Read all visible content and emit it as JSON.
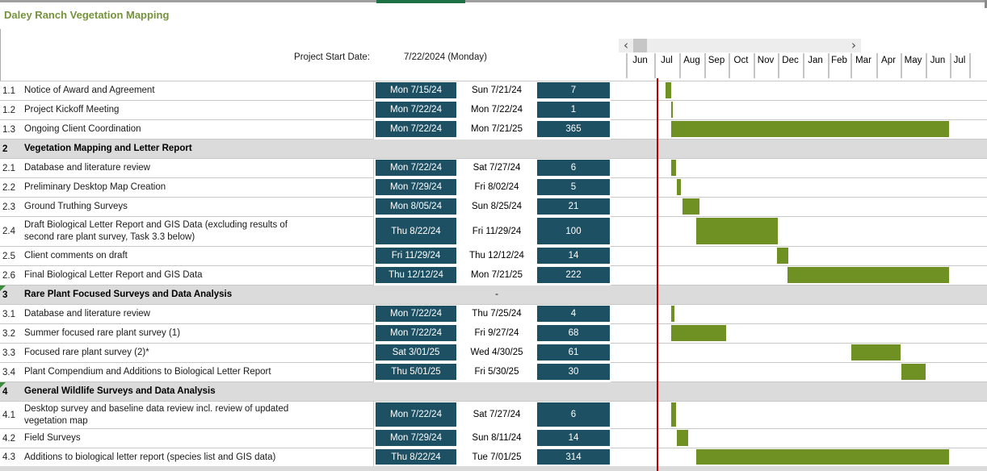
{
  "title": "Daley Ranch Vegetation Mapping",
  "project_start": {
    "label": "Project Start Date:",
    "value": "7/22/2024 (Monday)"
  },
  "scrollbar": {
    "left_glyph": "‹",
    "right_glyph": "›"
  },
  "timeline": {
    "months": [
      "Jun",
      "Jul",
      "Aug",
      "Sep",
      "Oct",
      "Nov",
      "Dec",
      "Jan",
      "Feb",
      "Mar",
      "Apr",
      "May",
      "Jun",
      "Jul"
    ]
  },
  "colors": {
    "accent_teal": "#1E5064",
    "bar_green": "#6F9124",
    "today_red": "#BE0000",
    "section_gray": "#DBDBDB",
    "title_olive": "#76933C",
    "flag_green": "#3C8A3C",
    "sheet_tab_green": "#1E7145"
  },
  "tasks": [
    {
      "type": "task",
      "id": "1.1",
      "name": "Notice of Award and Agreement",
      "start_label": "Mon 7/15/24",
      "end_label": "Sun 7/21/24",
      "days": "7",
      "start": "2024-07-15",
      "end": "2024-07-21"
    },
    {
      "type": "task",
      "id": "1.2",
      "name": "Project Kickoff Meeting",
      "start_label": "Mon 7/22/24",
      "end_label": "Mon 7/22/24",
      "days": "1",
      "start": "2024-07-22",
      "end": "2024-07-22"
    },
    {
      "type": "task",
      "id": "1.3",
      "name": "Ongoing Client Coordination",
      "start_label": "Mon 7/22/24",
      "end_label": "Mon 7/21/25",
      "days": "365",
      "start": "2024-07-22",
      "end": "2025-07-21"
    },
    {
      "type": "section",
      "id": "2",
      "name": "Vegetation Mapping and Letter Report"
    },
    {
      "type": "task",
      "id": "2.1",
      "name": "Database and literature review",
      "start_label": "Mon 7/22/24",
      "end_label": "Sat 7/27/24",
      "days": "6",
      "start": "2024-07-22",
      "end": "2024-07-27"
    },
    {
      "type": "task",
      "id": "2.2",
      "name": "Preliminary Desktop Map Creation",
      "start_label": "Mon 7/29/24",
      "end_label": "Fri 8/02/24",
      "days": "5",
      "start": "2024-07-29",
      "end": "2024-08-02"
    },
    {
      "type": "task",
      "id": "2.3",
      "name": "Ground Truthing Surveys",
      "start_label": "Mon 8/05/24",
      "end_label": "Sun 8/25/24",
      "days": "21",
      "start": "2024-08-05",
      "end": "2024-08-25"
    },
    {
      "type": "task",
      "id": "2.4",
      "name": "Draft Biological Letter Report and GIS Data (excluding results of\nsecond rare plant survey, Task 3.3 below)",
      "start_label": "Thu 8/22/24",
      "end_label": "Fri 11/29/24",
      "days": "100",
      "start": "2024-08-22",
      "end": "2024-11-29"
    },
    {
      "type": "task",
      "id": "2.5",
      "name": "Client comments on draft",
      "start_label": "Fri 11/29/24",
      "end_label": "Thu 12/12/24",
      "days": "14",
      "start": "2024-11-29",
      "end": "2024-12-12"
    },
    {
      "type": "task",
      "id": "2.6",
      "name": "Final Biological Letter Report and GIS Data",
      "start_label": "Thu 12/12/24",
      "end_label": "Mon 7/21/25",
      "days": "222",
      "start": "2024-12-12",
      "end": "2025-07-21"
    },
    {
      "type": "section",
      "id": "3",
      "name": "Rare Plant Focused Surveys and Data Analysis",
      "end_label": "-",
      "flag": true
    },
    {
      "type": "task",
      "id": "3.1",
      "name": "Database and literature review",
      "start_label": "Mon 7/22/24",
      "end_label": "Thu 7/25/24",
      "days": "4",
      "start": "2024-07-22",
      "end": "2024-07-25"
    },
    {
      "type": "task",
      "id": "3.2",
      "name": "Summer focused rare plant survey (1)",
      "start_label": "Mon 7/22/24",
      "end_label": "Fri 9/27/24",
      "days": "68",
      "start": "2024-07-22",
      "end": "2024-09-27"
    },
    {
      "type": "task",
      "id": "3.3",
      "name": "Focused rare plant survey (2)*",
      "start_label": "Sat 3/01/25",
      "end_label": "Wed 4/30/25",
      "days": "61",
      "start": "2025-03-01",
      "end": "2025-04-30"
    },
    {
      "type": "task",
      "id": "3.4",
      "name": "Plant Compendium and Additions to Biological Letter Report",
      "start_label": "Thu 5/01/25",
      "end_label": "Fri 5/30/25",
      "days": "30",
      "start": "2025-05-01",
      "end": "2025-05-30"
    },
    {
      "type": "section",
      "id": "4",
      "name": "General Wildlife Surveys and Data Analysis",
      "flag": true
    },
    {
      "type": "task",
      "id": "4.1",
      "name": "Desktop survey and baseline data review incl. review of updated\nvegetation map",
      "start_label": "Mon 7/22/24",
      "end_label": "Sat 7/27/24",
      "days": "6",
      "start": "2024-07-22",
      "end": "2024-07-27"
    },
    {
      "type": "task",
      "id": "4.2",
      "name": "Field Surveys",
      "start_label": "Mon 7/29/24",
      "end_label": "Sun 8/11/24",
      "days": "14",
      "start": "2024-07-29",
      "end": "2024-08-11"
    },
    {
      "type": "task",
      "id": "4.3",
      "name": "Additions to biological letter report (species list and GIS data)",
      "start_label": "Thu 8/22/24",
      "end_label": "Tue 7/01/25",
      "days": "314",
      "start": "2024-08-22",
      "end": "2025-07-01"
    }
  ]
}
